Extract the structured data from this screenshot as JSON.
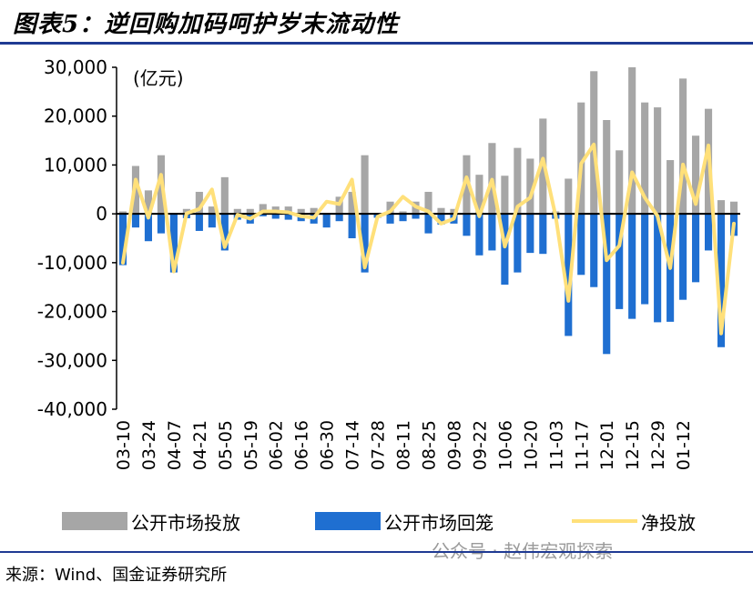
{
  "header": {
    "title": "图表5：逆回购加码呵护岁末流动性"
  },
  "legend": {
    "gray": "公开市场投放",
    "blue": "公开市场回笼",
    "line": "净投放"
  },
  "footer": {
    "source": "来源：Wind、国金证券研究所",
    "watermark": "公众号 · 赵伟宏观探索"
  },
  "colors": {
    "injection": "#a6a6a6",
    "withdrawal": "#1f6fd1",
    "net": "#ffe07a",
    "rule": "#1f3a93"
  },
  "chart_data": {
    "type": "bar",
    "unit_label": "(亿元)",
    "ylim": [
      -40000,
      30000
    ],
    "yticks": [
      {
        "value": 30000,
        "label": "30,000"
      },
      {
        "value": 20000,
        "label": "20,000"
      },
      {
        "value": 10000,
        "label": "10,000"
      },
      {
        "value": 0,
        "label": "0"
      },
      {
        "value": -10000,
        "label": "-10,000"
      },
      {
        "value": -20000,
        "label": "-20,000"
      },
      {
        "value": -30000,
        "label": "-30,000"
      },
      {
        "value": -40000,
        "label": "-40,000"
      }
    ],
    "xtick_labels": [
      "03-10",
      "03-24",
      "04-07",
      "04-21",
      "05-05",
      "05-19",
      "06-02",
      "06-16",
      "06-30",
      "07-14",
      "07-28",
      "08-11",
      "08-25",
      "09-08",
      "09-22",
      "10-06",
      "10-20",
      "11-03",
      "11-17",
      "12-01",
      "12-15",
      "12-29",
      "01-12"
    ],
    "series": [
      {
        "name": "公开市场投放",
        "kind": "bar",
        "values": [
          500,
          9800,
          4800,
          12000,
          200,
          1000,
          4500,
          1500,
          7500,
          1000,
          1000,
          2000,
          1500,
          1500,
          1000,
          1200,
          200,
          3500,
          4500,
          12000,
          200,
          2500,
          500,
          2500,
          4500,
          1200,
          1000,
          12000,
          8000,
          14500,
          7800,
          13500,
          11300,
          19500,
          500,
          7200,
          22800,
          29200,
          19200,
          13000,
          30000,
          22800,
          21800,
          11000,
          27700,
          16000,
          21500,
          2800,
          2500
        ]
      },
      {
        "name": "公开市场回笼",
        "kind": "bar",
        "values": [
          -10500,
          -2800,
          -5600,
          -4000,
          -12000,
          -900,
          -3500,
          -2800,
          -7500,
          -1200,
          -2000,
          -500,
          -1000,
          -1200,
          -1500,
          -2000,
          -2800,
          -1500,
          -5000,
          -12000,
          -800,
          -2000,
          -1500,
          -1000,
          -4000,
          -2200,
          -2000,
          -4500,
          -8500,
          -7500,
          -14500,
          -12000,
          -8000,
          -8200,
          -1000,
          -25000,
          -12500,
          -15000,
          -28700,
          -19500,
          -21500,
          -18500,
          -22200,
          -22100,
          -17600,
          -14000,
          -7500,
          -27300,
          -4500
        ]
      },
      {
        "name": "净投放",
        "kind": "line",
        "values": [
          -10000,
          7000,
          -800,
          8000,
          -11800,
          100,
          1000,
          5000,
          -6800,
          -200,
          -1000,
          500,
          500,
          300,
          -500,
          -800,
          2500,
          2000,
          7000,
          -11000,
          -600,
          500,
          3500,
          1500,
          500,
          -2000,
          -1000,
          7500,
          -500,
          7000,
          -6700,
          1500,
          3300,
          11300,
          -500,
          -17800,
          10300,
          14200,
          -9500,
          -6500,
          8500,
          3300,
          -400,
          -11100,
          10100,
          2000,
          14000,
          -24500,
          -2000
        ]
      }
    ]
  }
}
